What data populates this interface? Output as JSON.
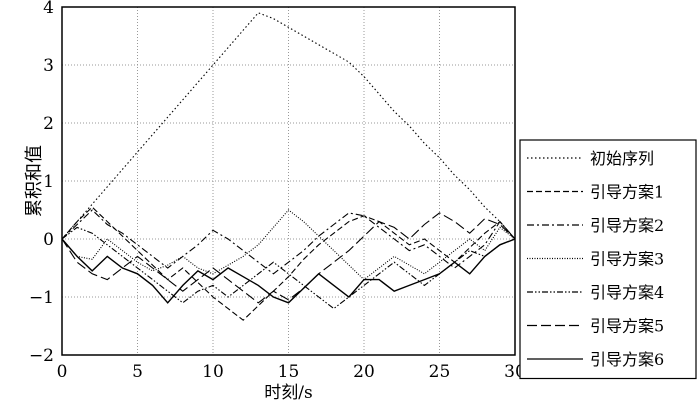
{
  "chart_data": {
    "type": "line",
    "xlabel": "时刻/s",
    "ylabel": "累积和值",
    "xlim": [
      0,
      30
    ],
    "ylim": [
      -2,
      4
    ],
    "xticks": [
      0,
      5,
      10,
      15,
      20,
      25,
      30
    ],
    "yticks": [
      -2,
      -1,
      0,
      1,
      2,
      3,
      4
    ],
    "grid": true,
    "legend_placement": "right",
    "x": [
      0,
      1,
      2,
      3,
      4,
      5,
      6,
      7,
      8,
      9,
      10,
      11,
      12,
      13,
      14,
      15,
      16,
      17,
      18,
      19,
      20,
      21,
      22,
      23,
      24,
      25,
      26,
      27,
      28,
      29,
      30
    ],
    "series": [
      {
        "name": "初始序列",
        "style": "dotted",
        "values": [
          0,
          0.3,
          0.6,
          0.9,
          1.2,
          1.5,
          1.8,
          2.1,
          2.4,
          2.7,
          3.0,
          3.3,
          3.6,
          3.9,
          3.8,
          3.65,
          3.5,
          3.35,
          3.2,
          3.05,
          2.8,
          2.5,
          2.2,
          1.95,
          1.65,
          1.4,
          1.1,
          0.85,
          0.55,
          0.3,
          0
        ]
      },
      {
        "name": "引导方案1",
        "style": "dashed",
        "values": [
          0,
          0.3,
          0.55,
          0.3,
          0.05,
          -0.2,
          -0.45,
          -0.7,
          -0.5,
          -0.75,
          -1.0,
          -1.2,
          -1.4,
          -1.15,
          -0.9,
          -0.65,
          -0.35,
          -0.1,
          0.1,
          0.3,
          0.4,
          0.3,
          0.1,
          -0.1,
          0,
          -0.2,
          -0.4,
          -0.15,
          0.1,
          0.3,
          0
        ]
      },
      {
        "name": "引导方案2",
        "style": "dashdot",
        "values": [
          0,
          0.25,
          0.5,
          0.25,
          0.1,
          -0.1,
          -0.3,
          -0.5,
          -0.3,
          -0.1,
          0.15,
          0,
          -0.2,
          -0.4,
          -0.6,
          -0.4,
          -0.2,
          0.05,
          0.25,
          0.45,
          0.4,
          0.2,
          0,
          -0.2,
          -0.1,
          -0.3,
          -0.5,
          -0.3,
          -0.1,
          0.3,
          0
        ]
      },
      {
        "name": "引导方案3",
        "style": "dotted-fine",
        "values": [
          0,
          -0.3,
          -0.35,
          0,
          -0.2,
          -0.4,
          -0.55,
          -0.45,
          -0.3,
          -0.5,
          -0.6,
          -0.45,
          -0.3,
          -0.1,
          0.2,
          0.5,
          0.3,
          0.05,
          -0.2,
          -0.45,
          -0.7,
          -0.5,
          -0.3,
          -0.45,
          -0.6,
          -0.4,
          -0.2,
          0,
          -0.2,
          0.2,
          0
        ]
      },
      {
        "name": "引导方案4",
        "style": "dashdotdot",
        "values": [
          0,
          0.2,
          0.1,
          -0.1,
          -0.3,
          -0.5,
          -0.7,
          -0.9,
          -1.1,
          -0.9,
          -0.8,
          -1.0,
          -0.8,
          -0.6,
          -0.4,
          -0.6,
          -0.8,
          -1.0,
          -1.2,
          -1.0,
          -0.8,
          -0.6,
          -0.4,
          -0.6,
          -0.8,
          -0.6,
          -0.4,
          -0.2,
          -0.3,
          -0.1,
          0
        ]
      },
      {
        "name": "引导方案5",
        "style": "longdash",
        "values": [
          0,
          -0.4,
          -0.6,
          -0.7,
          -0.5,
          -0.3,
          -0.5,
          -0.7,
          -0.9,
          -0.7,
          -0.5,
          -0.7,
          -0.9,
          -1.1,
          -0.9,
          -1.05,
          -0.85,
          -0.6,
          -0.4,
          -0.2,
          0.05,
          0.3,
          0.2,
          0,
          0.25,
          0.45,
          0.3,
          0.1,
          0.35,
          0.25,
          0
        ]
      },
      {
        "name": "引导方案6",
        "style": "solid",
        "values": [
          0,
          -0.3,
          -0.55,
          -0.3,
          -0.5,
          -0.6,
          -0.8,
          -1.1,
          -0.8,
          -0.55,
          -0.7,
          -0.5,
          -0.65,
          -0.8,
          -1.0,
          -1.1,
          -0.85,
          -0.6,
          -0.8,
          -1.0,
          -0.7,
          -0.7,
          -0.9,
          -0.8,
          -0.7,
          -0.6,
          -0.4,
          -0.6,
          -0.3,
          -0.1,
          0
        ]
      }
    ]
  }
}
